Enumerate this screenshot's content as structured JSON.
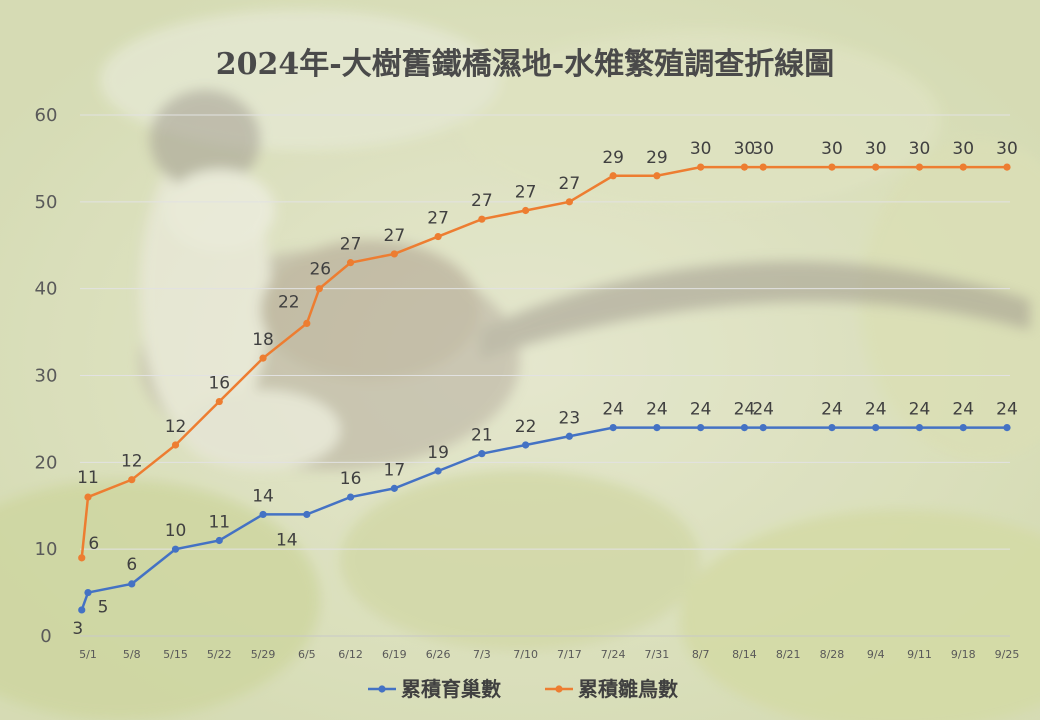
{
  "chart_data": {
    "type": "line",
    "title": "2024年-大樹舊鐵橋濕地-水雉繁殖調查折線圖",
    "xlabel": "",
    "ylabel": "",
    "ylim": [
      0,
      60
    ],
    "yticks": [
      0,
      10,
      20,
      30,
      40,
      50,
      60
    ],
    "grid": true,
    "legend_position": "bottom",
    "categories": [
      "5/1",
      "5/8",
      "5/15",
      "5/22",
      "5/29",
      "6/5",
      "6/12",
      "6/19",
      "6/26",
      "7/3",
      "7/10",
      "7/17",
      "7/24",
      "7/31",
      "8/7",
      "8/14",
      "8/21",
      "8/28",
      "9/4",
      "9/11",
      "9/18",
      "9/25"
    ],
    "series": [
      {
        "name": "累積育巢數",
        "color": "#4472c4",
        "points": [
          {
            "x": "4/30",
            "y": 3,
            "label": "3"
          },
          {
            "x": "5/1",
            "y": 5,
            "label": "5"
          },
          {
            "x": "5/8",
            "y": 6,
            "label": "6"
          },
          {
            "x": "5/15",
            "y": 10,
            "label": "10"
          },
          {
            "x": "5/22",
            "y": 11,
            "label": "11"
          },
          {
            "x": "5/29",
            "y": 14,
            "label": "14"
          },
          {
            "x": "6/5",
            "y": 14,
            "label": "14"
          },
          {
            "x": "6/12",
            "y": 16,
            "label": "16"
          },
          {
            "x": "6/19",
            "y": 17,
            "label": "17"
          },
          {
            "x": "6/26",
            "y": 19,
            "label": "19"
          },
          {
            "x": "7/3",
            "y": 21,
            "label": "21"
          },
          {
            "x": "7/10",
            "y": 22,
            "label": "22"
          },
          {
            "x": "7/17",
            "y": 23,
            "label": "23"
          },
          {
            "x": "7/24",
            "y": 24,
            "label": "24"
          },
          {
            "x": "7/31",
            "y": 24,
            "label": "24"
          },
          {
            "x": "8/7",
            "y": 24,
            "label": "24"
          },
          {
            "x": "8/14",
            "y": 24,
            "label": "24"
          },
          {
            "x": "8/17",
            "y": 24,
            "label": "24"
          },
          {
            "x": "8/28",
            "y": 24,
            "label": "24"
          },
          {
            "x": "9/4",
            "y": 24,
            "label": "24"
          },
          {
            "x": "9/11",
            "y": 24,
            "label": "24"
          },
          {
            "x": "9/18",
            "y": 24,
            "label": "24"
          },
          {
            "x": "9/25",
            "y": 24,
            "label": "24"
          }
        ]
      },
      {
        "name": "累積雛鳥數",
        "color": "#ed7d31",
        "points": [
          {
            "x": "4/30",
            "y": 9,
            "label": "6"
          },
          {
            "x": "5/1",
            "y": 16,
            "label": "11"
          },
          {
            "x": "5/8",
            "y": 18,
            "label": "12"
          },
          {
            "x": "5/15",
            "y": 22,
            "label": "12"
          },
          {
            "x": "5/22",
            "y": 27,
            "label": "16"
          },
          {
            "x": "5/29",
            "y": 32,
            "label": "18"
          },
          {
            "x": "6/5",
            "y": 36,
            "label": "22"
          },
          {
            "x": "6/7",
            "y": 40,
            "label": "26"
          },
          {
            "x": "6/12",
            "y": 43,
            "label": "27"
          },
          {
            "x": "6/19",
            "y": 44,
            "label": "27"
          },
          {
            "x": "6/26",
            "y": 46,
            "label": "27"
          },
          {
            "x": "7/3",
            "y": 48,
            "label": "27"
          },
          {
            "x": "7/10",
            "y": 49,
            "label": "27"
          },
          {
            "x": "7/17",
            "y": 50,
            "label": "27"
          },
          {
            "x": "7/24",
            "y": 53,
            "label": "29"
          },
          {
            "x": "7/31",
            "y": 53,
            "label": "29"
          },
          {
            "x": "8/7",
            "y": 54,
            "label": "30"
          },
          {
            "x": "8/14",
            "y": 54,
            "label": "30"
          },
          {
            "x": "8/17",
            "y": 54,
            "label": "30"
          },
          {
            "x": "8/28",
            "y": 54,
            "label": "30"
          },
          {
            "x": "9/4",
            "y": 54,
            "label": "30"
          },
          {
            "x": "9/11",
            "y": 54,
            "label": "30"
          },
          {
            "x": "9/18",
            "y": 54,
            "label": "30"
          },
          {
            "x": "9/25",
            "y": 54,
            "label": "30"
          }
        ]
      }
    ]
  }
}
